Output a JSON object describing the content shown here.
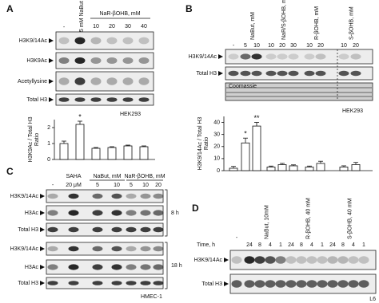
{
  "panels": {
    "a": {
      "label": "A",
      "control": "-",
      "nabut": "5 mM NaBut",
      "group": "NaR-βOHB, mM",
      "lanes": [
        "10",
        "20",
        "30",
        "40"
      ],
      "blots": [
        "H3K9/14Ac",
        "H3K9Ac",
        "Acetyllysine",
        "Total H3"
      ],
      "cell_line": "HEK293",
      "chart": {
        "type": "bar",
        "ylabel": [
          "H3K9Ac / Total H3",
          "Ratio"
        ],
        "ylim": [
          0,
          2.5
        ],
        "yticks": [
          0,
          1,
          2
        ],
        "values": [
          1.0,
          2.2,
          0.7,
          0.75,
          0.85,
          0.8
        ],
        "errors": [
          0.15,
          0.2,
          0.05,
          0.05,
          0.05,
          0.05
        ],
        "annotations": [
          null,
          "*",
          null,
          null,
          null,
          null
        ]
      }
    },
    "b": {
      "label": "B",
      "control": "-",
      "groups": [
        "NaBut, mM",
        "NaR/S-βOHB, mM",
        "R-βOHB, mM",
        "S-βOHB, mM"
      ],
      "lanes": [
        "5",
        "10",
        "10",
        "20",
        "30",
        "10",
        "20",
        "10",
        "20"
      ],
      "blots": [
        "H3K9/14Ac",
        "Total H3"
      ],
      "stain": "Coomassie",
      "cell_line": "HEK293",
      "chart": {
        "type": "bar",
        "ylabel": [
          "H3K9/14Ac / Total H3",
          "Ratio"
        ],
        "ylim": [
          0,
          45
        ],
        "yticks": [
          0,
          10,
          20,
          30,
          40
        ],
        "values": [
          2,
          23,
          37,
          3,
          5,
          4,
          3,
          6,
          3,
          5
        ],
        "errors": [
          1.5,
          4,
          3,
          0.8,
          1,
          0.8,
          0.8,
          1.8,
          1,
          1.8
        ],
        "annotations": [
          null,
          "*",
          "**",
          null,
          null,
          null,
          null,
          null,
          null,
          null
        ]
      }
    },
    "c": {
      "label": "C",
      "control": "-",
      "groups": [
        "SAHA",
        "NaBut, mM",
        "NaR-βOHB, mM"
      ],
      "lanes": [
        "20 μM",
        "5",
        "10",
        "5",
        "10",
        "20"
      ],
      "timepoints": [
        {
          "time": "8 h",
          "blots": [
            "H3K9/14Ac",
            "H3Ac",
            "Total H3"
          ]
        },
        {
          "time": "18 h",
          "blots": [
            "H3K9/14Ac",
            "H3Ac",
            "Total H3"
          ]
        }
      ],
      "cell_line": "HMEC-1"
    },
    "d": {
      "label": "D",
      "control": "-",
      "groups": [
        "NaBut, 10mM",
        "R-βOHB, 40 mM",
        "S-βOHB, 40 mM"
      ],
      "time_label": "Time, h",
      "times": [
        "24",
        "8",
        "4",
        "1",
        "24",
        "8",
        "4",
        "1",
        "24",
        "8",
        "4",
        "1"
      ],
      "blots": [
        "H3K9/14Ac",
        "Total H3"
      ],
      "cell_line": "L6"
    }
  }
}
